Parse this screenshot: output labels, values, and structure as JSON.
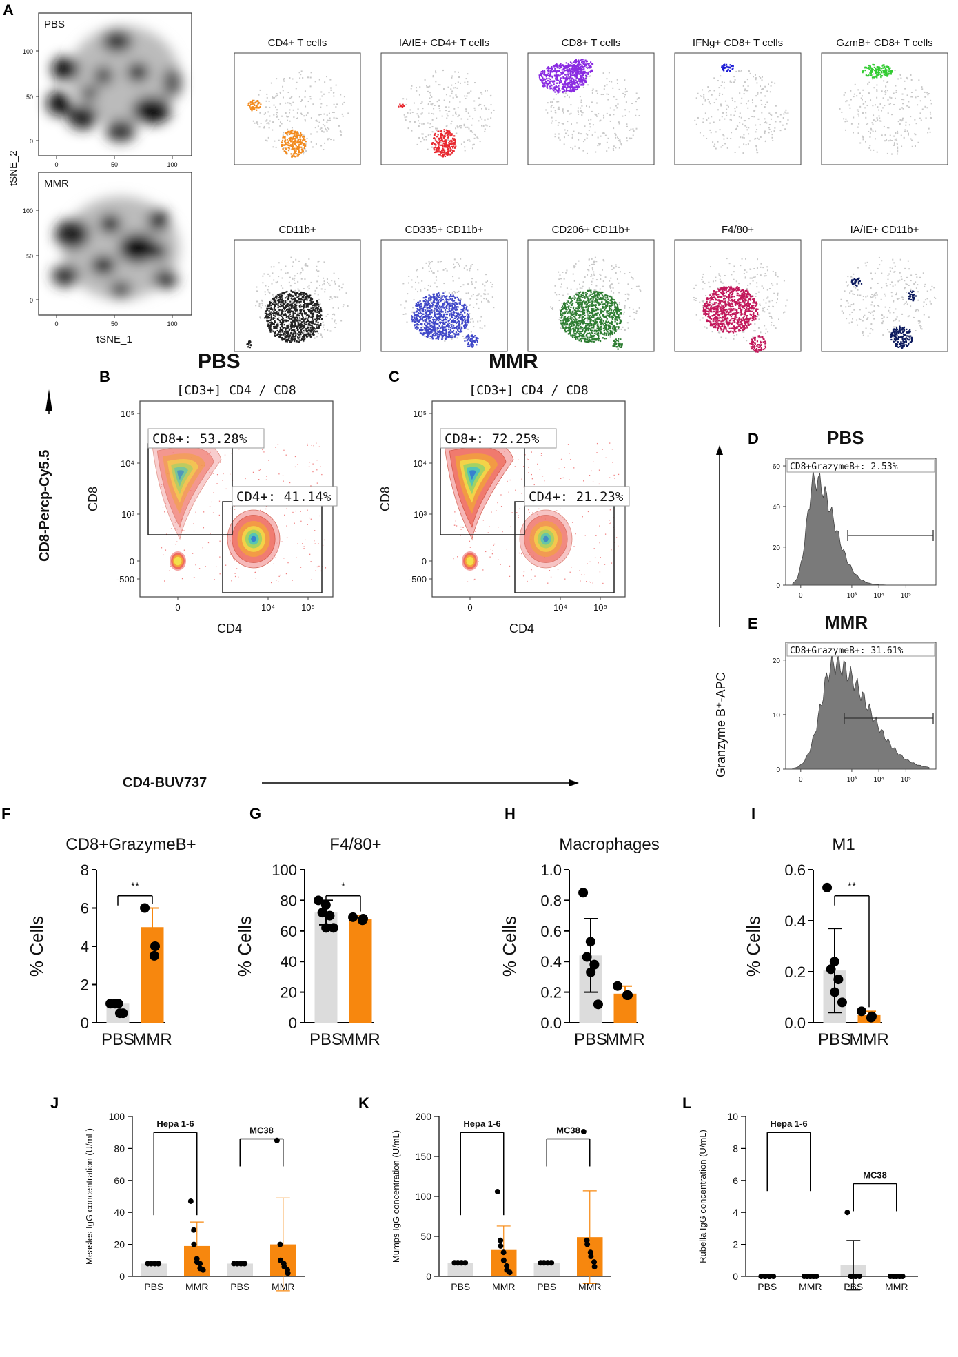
{
  "panel_letters": [
    "A",
    "B",
    "C",
    "D",
    "E",
    "F",
    "G",
    "H",
    "I",
    "J",
    "K",
    "L"
  ],
  "panel_a": {
    "xlabel": "tSNE_1",
    "ylabel": "tSNE_2",
    "ticks": [
      "0",
      "50",
      "100"
    ],
    "groups": [
      "PBS",
      "MMR"
    ],
    "tiles": [
      {
        "title": "CD4+ T cells",
        "color": "#f28a1d"
      },
      {
        "title": "IA/IE+ CD4+ T cells",
        "color": "#e8282f"
      },
      {
        "title": "CD8+ T cells",
        "color": "#8a2be2"
      },
      {
        "title": "IFNg+ CD8+ T cells",
        "color": "#1a1ad6"
      },
      {
        "title": "GzmB+ CD8+ T cells",
        "color": "#33cc33"
      },
      {
        "title": "CD11b+",
        "color": "#222222"
      },
      {
        "title": "CD335+ CD11b+",
        "color": "#3f47c8"
      },
      {
        "title": "CD206+ CD11b+",
        "color": "#2e7d32"
      },
      {
        "title": "F4/80+",
        "color": "#c2185b"
      },
      {
        "title": "IA/IE+ CD11b+",
        "color": "#0d1b5e"
      }
    ]
  },
  "flow": {
    "pbs_title": "PBS",
    "mmr_title": "MMR",
    "plot_title": "[CD3+] CD4 / CD8",
    "ylabel": "CD8",
    "xlabel": "CD4",
    "pbs_cd8_gate": "CD8+: 53.28%",
    "pbs_cd4_gate": "CD4+: 41.14%",
    "mmr_cd8_gate": "CD8+: 72.25%",
    "mmr_cd4_gate": "CD4+: 21.23%",
    "yticks": [
      "10⁵",
      "10⁴",
      "10³",
      "0",
      "-500"
    ],
    "xticks": [
      "0",
      "10⁴",
      "10⁵"
    ],
    "big_ylabel": "CD8-Percp-Cy5.5",
    "big_xlabel": "CD4-BUV737"
  },
  "hist": {
    "ylabel": "Granzyme B⁺-APC",
    "pbs_title": "PBS",
    "mmr_title": "MMR",
    "pbs_gate": "CD8+GrazymeB+: 2.53%",
    "mmr_gate": "CD8+GrazymeB+: 31.61%",
    "pbs_yticks": [
      "60",
      "40",
      "20",
      "0"
    ],
    "mmr_yticks": [
      "20",
      "10",
      "0"
    ],
    "xticks": [
      "0",
      "10³",
      "10⁴",
      "10⁵"
    ]
  },
  "chart_data": [
    {
      "panel": "F",
      "type": "bar",
      "title": "CD8+GrazymeB+",
      "ylabel": "% Cells",
      "categories": [
        "PBS",
        "MMR"
      ],
      "values": [
        1.0,
        5.0
      ],
      "errors": [
        0.0,
        1.0
      ],
      "ylim": [
        0,
        8
      ],
      "yticks": [
        "0",
        "2",
        "4",
        "6",
        "8"
      ],
      "points": [
        [
          1,
          1,
          1,
          0.5,
          0.5
        ],
        [
          6,
          4,
          3.5
        ]
      ],
      "significance": "**"
    },
    {
      "panel": "G",
      "type": "bar",
      "title": "F4/80+",
      "ylabel": "% Cells",
      "categories": [
        "PBS",
        "MMR"
      ],
      "values": [
        72,
        68
      ],
      "errors": [
        8,
        2
      ],
      "ylim": [
        0,
        100
      ],
      "yticks": [
        "0",
        "20",
        "40",
        "60",
        "80",
        "100"
      ],
      "points": [
        [
          80,
          77,
          72,
          70,
          62,
          62
        ],
        [
          69,
          68,
          67
        ]
      ],
      "significance": "*"
    },
    {
      "panel": "H",
      "type": "bar",
      "title": "Macrophages",
      "ylabel": "% Cells",
      "categories": [
        "PBS",
        "MMR"
      ],
      "values": [
        0.44,
        0.19
      ],
      "errors": [
        0.24,
        0.05
      ],
      "ylim": [
        0,
        1.0
      ],
      "yticks": [
        "0.0",
        "0.2",
        "0.4",
        "0.6",
        "0.8",
        "1.0"
      ],
      "points": [
        [
          0.85,
          0.53,
          0.43,
          0.38,
          0.33,
          0.12
        ],
        [
          0.24,
          0.18,
          0.18
        ]
      ],
      "significance": ""
    },
    {
      "panel": "I",
      "type": "bar",
      "title": "M1",
      "ylabel": "% Cells",
      "categories": [
        "PBS",
        "MMR"
      ],
      "values": [
        0.205,
        0.03
      ],
      "errors": [
        0.165,
        0.015
      ],
      "ylim": [
        0,
        0.6
      ],
      "yticks": [
        "0.0",
        "0.2",
        "0.4",
        "0.6"
      ],
      "points": [
        [
          0.53,
          0.24,
          0.21,
          0.17,
          0.12,
          0.08
        ],
        [
          0.045,
          0.025,
          0.02
        ]
      ],
      "significance": "**"
    },
    {
      "panel": "J",
      "type": "bar",
      "title": "",
      "ylabel": "Measles IgG concentration (U/mL)",
      "categories": [
        "PBS",
        "MMR",
        "PBS",
        "MMR"
      ],
      "values": [
        8,
        19,
        8,
        20
      ],
      "errors": [
        0,
        15,
        0,
        29
      ],
      "ylim": [
        0,
        100
      ],
      "yticks": [
        "0",
        "20",
        "40",
        "60",
        "80",
        "100"
      ],
      "points": [
        [
          8,
          8,
          8,
          8,
          8,
          8,
          8
        ],
        [
          47,
          29,
          20,
          11,
          9,
          8,
          5,
          4
        ],
        [
          8,
          8,
          8,
          8,
          8,
          8,
          8
        ],
        [
          85,
          20,
          10,
          8,
          6,
          4,
          2
        ]
      ],
      "brackets": [
        {
          "label": "Hepa 1-6",
          "from": 0,
          "to": 1
        },
        {
          "label": "MC38",
          "from": 2,
          "to": 3
        }
      ]
    },
    {
      "panel": "K",
      "type": "bar",
      "title": "",
      "ylabel": "Mumps IgG concentration (U/mL)",
      "categories": [
        "PBS",
        "MMR",
        "PBS",
        "MMR"
      ],
      "values": [
        17,
        33,
        17,
        49
      ],
      "errors": [
        0,
        30,
        0,
        58
      ],
      "ylim": [
        0,
        200
      ],
      "yticks": [
        "0",
        "50",
        "100",
        "150",
        "200"
      ],
      "points": [
        [
          17,
          17,
          17,
          17,
          17,
          17,
          17
        ],
        [
          106,
          45,
          38,
          30,
          20,
          13,
          8,
          5
        ],
        [
          17,
          17,
          17,
          17,
          17,
          17,
          17
        ],
        [
          181,
          45,
          40,
          30,
          25,
          18,
          12
        ]
      ],
      "brackets": [
        {
          "label": "Hepa 1-6",
          "from": 0,
          "to": 1
        },
        {
          "label": "MC38",
          "from": 2,
          "to": 3
        }
      ]
    },
    {
      "panel": "L",
      "type": "bar",
      "title": "",
      "ylabel": "Rubella IgG concentration (U/mL)",
      "categories": [
        "PBS",
        "MMR",
        "PBS",
        "MMR"
      ],
      "values": [
        0,
        0,
        0.7,
        0
      ],
      "errors": [
        0,
        0,
        1.55,
        0
      ],
      "ylim": [
        0,
        10
      ],
      "yticks": [
        "0",
        "2",
        "4",
        "6",
        "8",
        "10"
      ],
      "points": [
        [
          0,
          0,
          0,
          0,
          0,
          0
        ],
        [
          0,
          0,
          0,
          0,
          0,
          0,
          0,
          0
        ],
        [
          4,
          0,
          0,
          0,
          0,
          0
        ],
        [
          0,
          0,
          0,
          0,
          0,
          0,
          0,
          0
        ]
      ],
      "brackets": [
        {
          "label": "Hepa 1-6",
          "from": 0,
          "to": 1
        },
        {
          "label": "MC38",
          "from": 2,
          "to": 3
        }
      ]
    }
  ],
  "colors": {
    "pbs_bar": "#dcdcdc",
    "mmr_bar": "#f7870e",
    "point": "#000000",
    "hist_fill": "#7a7a7a",
    "frame": "#333333"
  }
}
